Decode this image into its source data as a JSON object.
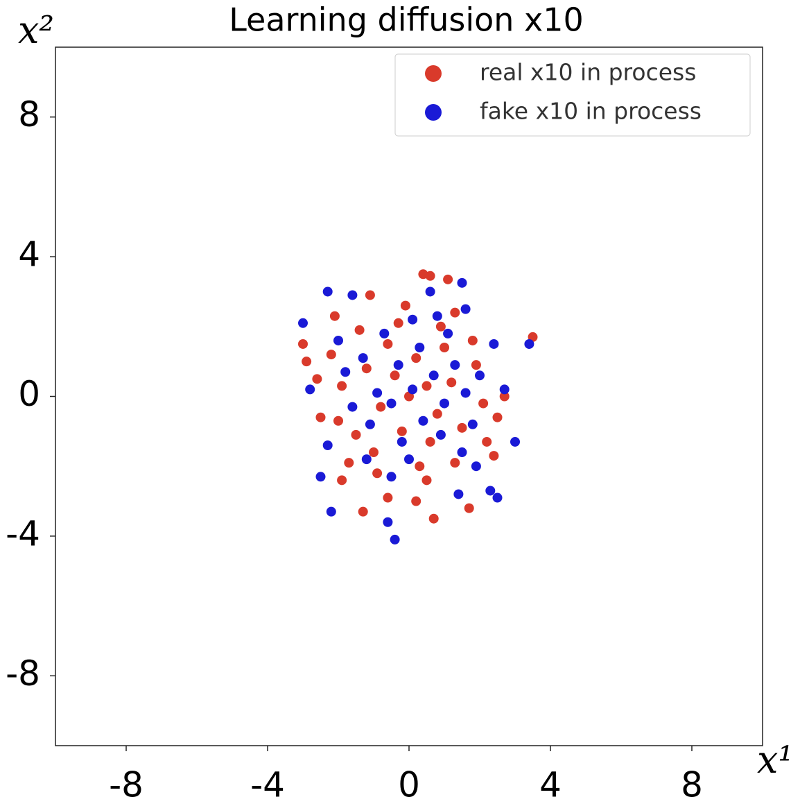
{
  "chart_data": {
    "type": "scatter",
    "title": "Learning diffusion x10",
    "xlabel": "x¹",
    "ylabel": "x²",
    "xlim": [
      -10,
      10
    ],
    "ylim": [
      -10,
      10
    ],
    "xticks": [
      -8,
      -4,
      0,
      4,
      8
    ],
    "yticks": [
      -8,
      -4,
      0,
      4,
      8
    ],
    "legend": "upper right",
    "series": [
      {
        "name": "real x10 in process",
        "color": "#d93a2b",
        "x": [
          0.4,
          0.6,
          1.1,
          -1.1,
          3.5,
          -3.0,
          -2.9,
          -2.6,
          -2.5,
          -1.9,
          -1.3,
          -0.6,
          0.2,
          0.7,
          1.7,
          2.7,
          2.5,
          2.4,
          1.3,
          -2.1,
          -0.1,
          0,
          0.5,
          -0.4,
          0.8,
          -0.8,
          0.2,
          -0.2,
          1.2,
          -1.2,
          0.6,
          -0.6,
          1.5,
          -1.5,
          1.0,
          -1.0,
          1.9,
          -1.9,
          0.3,
          -0.3,
          2.1,
          -2.0,
          1.3,
          -1.4,
          0.9,
          -0.9,
          1.8,
          -1.7,
          2.2,
          -2.2,
          0.5
        ],
        "y": [
          3.5,
          3.45,
          3.35,
          2.9,
          1.7,
          1.5,
          1.0,
          0.5,
          -0.6,
          -2.4,
          -3.3,
          -2.9,
          -3.0,
          -3.5,
          -3.2,
          0.0,
          -0.6,
          -1.7,
          2.4,
          2.3,
          2.6,
          0,
          0.3,
          0.6,
          -0.5,
          -0.3,
          1.1,
          -1.0,
          0.4,
          0.8,
          -1.3,
          1.5,
          -0.9,
          -1.1,
          1.4,
          -1.6,
          0.9,
          0.3,
          -2.0,
          2.1,
          -0.2,
          -0.7,
          -1.9,
          1.9,
          2.0,
          -2.2,
          1.6,
          -1.9,
          -1.3,
          1.2,
          -2.4
        ]
      },
      {
        "name": "fake x10 in process",
        "color": "#1a1ad6",
        "x": [
          -2.3,
          -3.0,
          0.6,
          1.5,
          3.4,
          3.0,
          2.3,
          -0.4,
          -0.6,
          -2.2,
          -2.5,
          -2.8,
          2.7,
          1.6,
          -1.6,
          2.5,
          1.4,
          0.1,
          -0.5,
          0.7,
          -0.3,
          0.4,
          -0.9,
          1.0,
          -0.2,
          0.3,
          -1.1,
          1.3,
          -1.3,
          0.9,
          -0.7,
          1.6,
          -1.6,
          0.0,
          0.1,
          1.8,
          -1.8,
          1.1,
          -1.2,
          2.0,
          -0.5,
          1.5,
          -2.0,
          0.8,
          1.9,
          -2.3,
          2.4
        ],
        "y": [
          3.0,
          2.1,
          3.0,
          3.25,
          1.5,
          -1.3,
          -2.7,
          -4.1,
          -3.6,
          -3.3,
          -2.3,
          0.2,
          0.2,
          2.5,
          2.9,
          -2.9,
          -2.8,
          0.2,
          -0.2,
          0.6,
          0.9,
          -0.7,
          0.1,
          -0.2,
          -1.3,
          1.4,
          -0.8,
          0.9,
          1.1,
          -1.1,
          1.8,
          0.1,
          -0.3,
          -1.8,
          2.2,
          -0.8,
          0.7,
          1.8,
          -1.8,
          0.6,
          -2.3,
          -1.6,
          1.6,
          2.3,
          -2.0,
          -1.4,
          1.5
        ]
      }
    ]
  }
}
